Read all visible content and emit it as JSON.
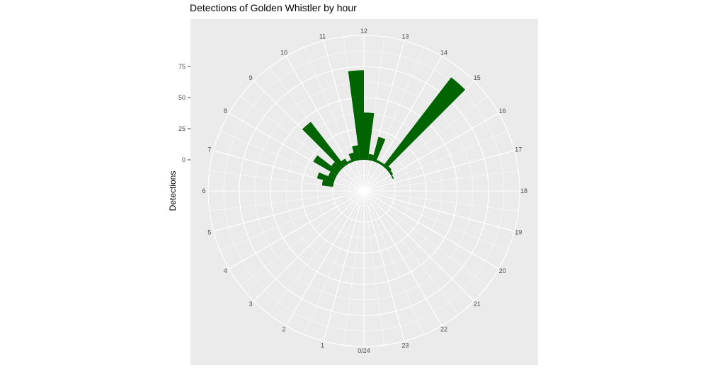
{
  "chart_data": {
    "type": "bar",
    "coord": "polar",
    "title": "Detections of Golden Whistler by hour",
    "ylabel": "Detections",
    "hour_labels": [
      "0/24",
      "1",
      "2",
      "3",
      "4",
      "5",
      "6",
      "7",
      "8",
      "9",
      "10",
      "11",
      "12",
      "13",
      "14",
      "15",
      "16",
      "17",
      "18",
      "19",
      "20",
      "21",
      "22",
      "23"
    ],
    "y_ticks": [
      0,
      25,
      50,
      75
    ],
    "y_range": [
      -25,
      100
    ],
    "bar_color": "#006400",
    "panel_color": "#ebebeb",
    "grid_color": "#ffffff",
    "bins": [
      {
        "start": 6.5,
        "end": 7.0,
        "value": 9
      },
      {
        "start": 7.0,
        "end": 7.5,
        "value": 14
      },
      {
        "start": 7.5,
        "end": 8.0,
        "value": 6
      },
      {
        "start": 8.0,
        "end": 8.5,
        "value": 22
      },
      {
        "start": 8.5,
        "end": 9.0,
        "value": 8
      },
      {
        "start": 9.0,
        "end": 9.5,
        "value": 45
      },
      {
        "start": 9.5,
        "end": 10.0,
        "value": 5
      },
      {
        "start": 10.0,
        "end": 10.5,
        "value": 2
      },
      {
        "start": 10.5,
        "end": 11.0,
        "value": 7
      },
      {
        "start": 11.0,
        "end": 11.5,
        "value": 12
      },
      {
        "start": 11.5,
        "end": 12.0,
        "value": 72
      },
      {
        "start": 12.0,
        "end": 12.5,
        "value": 38
      },
      {
        "start": 12.5,
        "end": 13.0,
        "value": 5
      },
      {
        "start": 13.0,
        "end": 13.5,
        "value": 20
      },
      {
        "start": 13.5,
        "end": 14.0,
        "value": 2
      },
      {
        "start": 14.0,
        "end": 14.5,
        "value": 2
      },
      {
        "start": 14.5,
        "end": 15.0,
        "value": 90
      },
      {
        "start": 15.0,
        "end": 15.5,
        "value": 3
      },
      {
        "start": 15.5,
        "end": 16.0,
        "value": 2
      },
      {
        "start": 16.0,
        "end": 16.5,
        "value": 1
      }
    ]
  }
}
